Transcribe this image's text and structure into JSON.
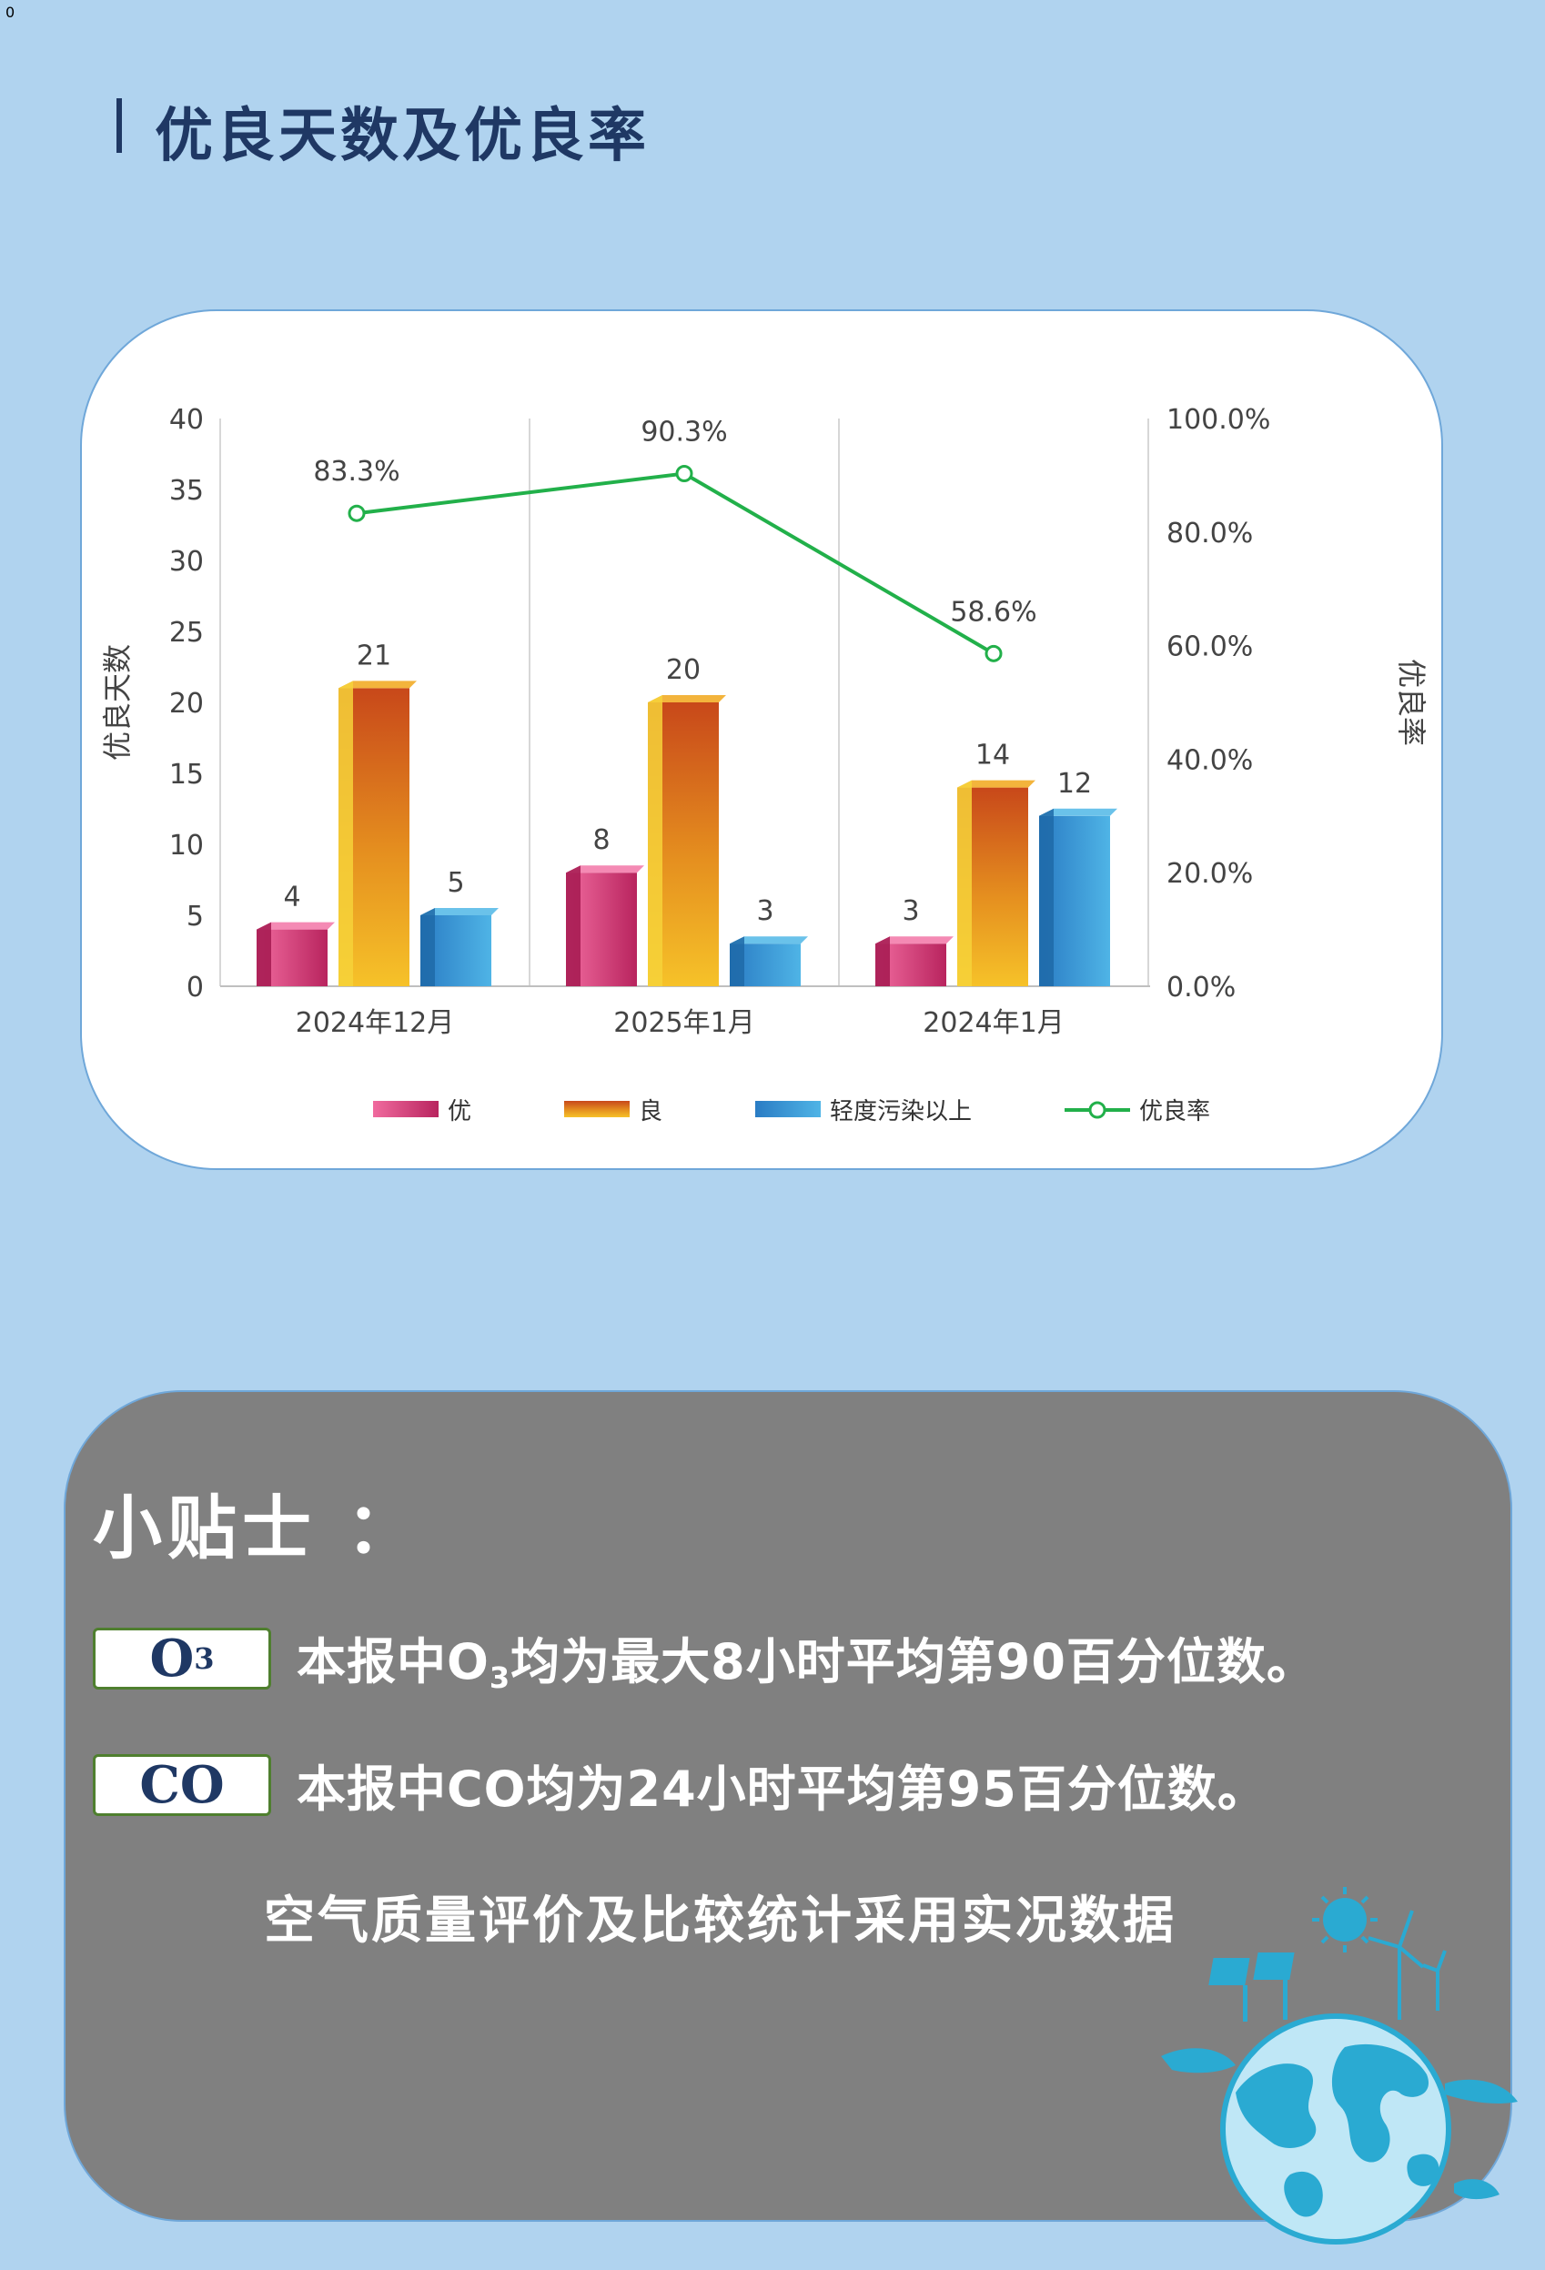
{
  "page_number": "0",
  "title": "优良天数及优良率",
  "chart_data": {
    "type": "bar",
    "categories": [
      "2024年12月",
      "2025年1月",
      "2024年1月"
    ],
    "series": [
      {
        "name": "优",
        "values": [
          4,
          8,
          3
        ],
        "color": "#d53a78"
      },
      {
        "name": "良",
        "values": [
          21,
          20,
          14
        ],
        "color": "#e58f1f"
      },
      {
        "name": "轻度污染以上",
        "values": [
          5,
          3,
          12
        ],
        "color": "#2f8fd0"
      }
    ],
    "line_series": {
      "name": "优良率",
      "values": [
        83.3,
        90.3,
        58.6
      ],
      "labels": [
        "83.3%",
        "90.3%",
        "58.6%"
      ],
      "color": "#22b04a",
      "axis": "right"
    },
    "ylabel": "优良天数",
    "y2label": "优良率",
    "ylim": [
      0,
      40
    ],
    "yticks": [
      "0",
      "5",
      "10",
      "15",
      "20",
      "25",
      "30",
      "35",
      "40"
    ],
    "y2lim": [
      0,
      100
    ],
    "y2ticks": [
      "0.0%",
      "20.0%",
      "40.0%",
      "60.0%",
      "80.0%",
      "100.0%"
    ],
    "legend_position": "bottom",
    "grid": "vertical"
  },
  "tips": {
    "title": "小贴士 ：",
    "o3_badge_main": "O",
    "o3_badge_sub": "3",
    "o3_text_pre": "本报中O",
    "o3_text_sub": "3",
    "o3_text_post": "均为最大8小时平均第90百分位数。",
    "co_badge": "CO",
    "co_text": "本报中CO均为24小时平均第95百分位数。",
    "note": "空气质量评价及比较统计采用实况数据"
  }
}
